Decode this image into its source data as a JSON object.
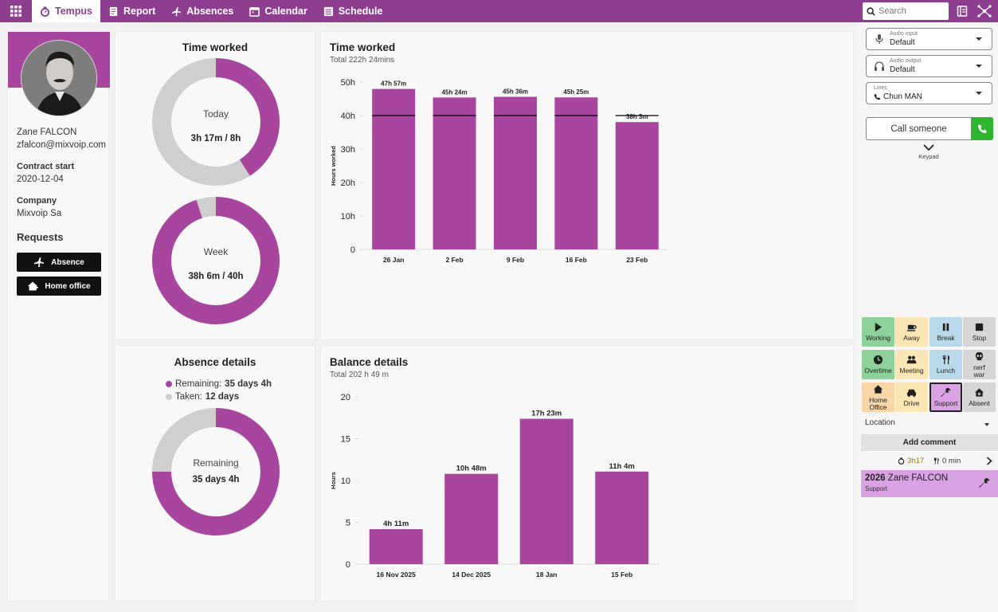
{
  "nav": {
    "tabs": [
      {
        "label": "Tempus"
      },
      {
        "label": "Report"
      },
      {
        "label": "Absences"
      },
      {
        "label": "Calendar"
      },
      {
        "label": "Schedule"
      }
    ],
    "search_placeholder": "Search"
  },
  "profile": {
    "name": "Zane FALCON",
    "email": "zfalcon@mixvoip.com",
    "contract_label": "Contract start",
    "contract_value": "2020-12-04",
    "company_label": "Company",
    "company_value": "Mixvoip Sa",
    "requests_title": "Requests",
    "absence_button": "Absence",
    "homeoffice_button": "Home office"
  },
  "time_worked_card": {
    "title": "Time worked",
    "today_label": "Today",
    "today_value": "3h 17m / 8h",
    "today_fraction": 0.41,
    "week_label": "Week",
    "week_value": "38h 6m / 40h",
    "week_fraction": 0.95
  },
  "absence_card": {
    "title": "Absence details",
    "remaining_label": "Remaining:",
    "remaining_value": "35 days 4h",
    "taken_label": "Taken:",
    "taken_value": "12 days",
    "donut_label": "Remaining",
    "donut_value": "35 days 4h",
    "remaining_fraction": 0.75
  },
  "chart_data": [
    {
      "type": "bar",
      "title": "Time worked",
      "subtitle": "Total 222h 24mins",
      "ylabel": "Hours worked",
      "ylim": [
        0,
        50
      ],
      "yticks": [
        "0",
        "10h",
        "20h",
        "30h",
        "40h",
        "50h"
      ],
      "categories": [
        "26 Jan",
        "2 Feb",
        "9 Feb",
        "16 Feb",
        "23 Feb"
      ],
      "values": [
        47.95,
        45.4,
        45.6,
        45.42,
        38.05
      ],
      "labels": [
        "47h 57m",
        "45h 24m",
        "45h 36m",
        "45h 25m",
        "38h 3m"
      ],
      "target": 40
    },
    {
      "type": "bar",
      "title": "Balance details",
      "subtitle": "Total 202 h 49 m",
      "ylabel": "Hours",
      "ylim": [
        0,
        20
      ],
      "yticks": [
        "0",
        "5",
        "10",
        "15",
        "20"
      ],
      "categories": [
        "16 Nov 2025",
        "14 Dec 2025",
        "18 Jan",
        "15 Feb"
      ],
      "values": [
        4.18,
        10.8,
        17.38,
        11.07
      ],
      "labels": [
        "4h 11m",
        "10h 48m",
        "17h 23m",
        "11h 4m"
      ]
    }
  ],
  "phone": {
    "audio_input_label": "Audio input",
    "audio_input_value": "Default",
    "audio_output_label": "Audio output",
    "audio_output_value": "Default",
    "lines_label": "Lines",
    "lines_value": "Chun MAN",
    "call_placeholder": "Call someone",
    "keypad_label": "Keypad"
  },
  "status_buttons": [
    {
      "label": "Working",
      "color": "#8fd19a"
    },
    {
      "label": "Away",
      "color": "#fbe7b5"
    },
    {
      "label": "Break",
      "color": "#b9d9ea"
    },
    {
      "label": "Stop",
      "color": "#d6d6d6"
    },
    {
      "label": "Overtime",
      "color": "#8fd19a"
    },
    {
      "label": "Meeting",
      "color": "#fbe7b5"
    },
    {
      "label": "Lunch",
      "color": "#b9d9ea"
    },
    {
      "label": "nerf war",
      "color": "#d6d6d6"
    },
    {
      "label": "Home Office",
      "color": "#f8d6a8"
    },
    {
      "label": "Drive",
      "color": "#fbe7b5"
    },
    {
      "label": "Support",
      "color": "#d9a3e3"
    },
    {
      "label": "Absent",
      "color": "#d6d6d6"
    }
  ],
  "tracker": {
    "location_label": "Location",
    "add_comment": "Add comment",
    "work_time": "3h17",
    "pause_time": "0 min",
    "entry_code": "2026",
    "entry_name": "Zane FALCON",
    "entry_status": "Support"
  },
  "colors": {
    "accent": "#8e3e8e",
    "bar": "#a8459f",
    "donut_rest": "#cfcfcf"
  }
}
